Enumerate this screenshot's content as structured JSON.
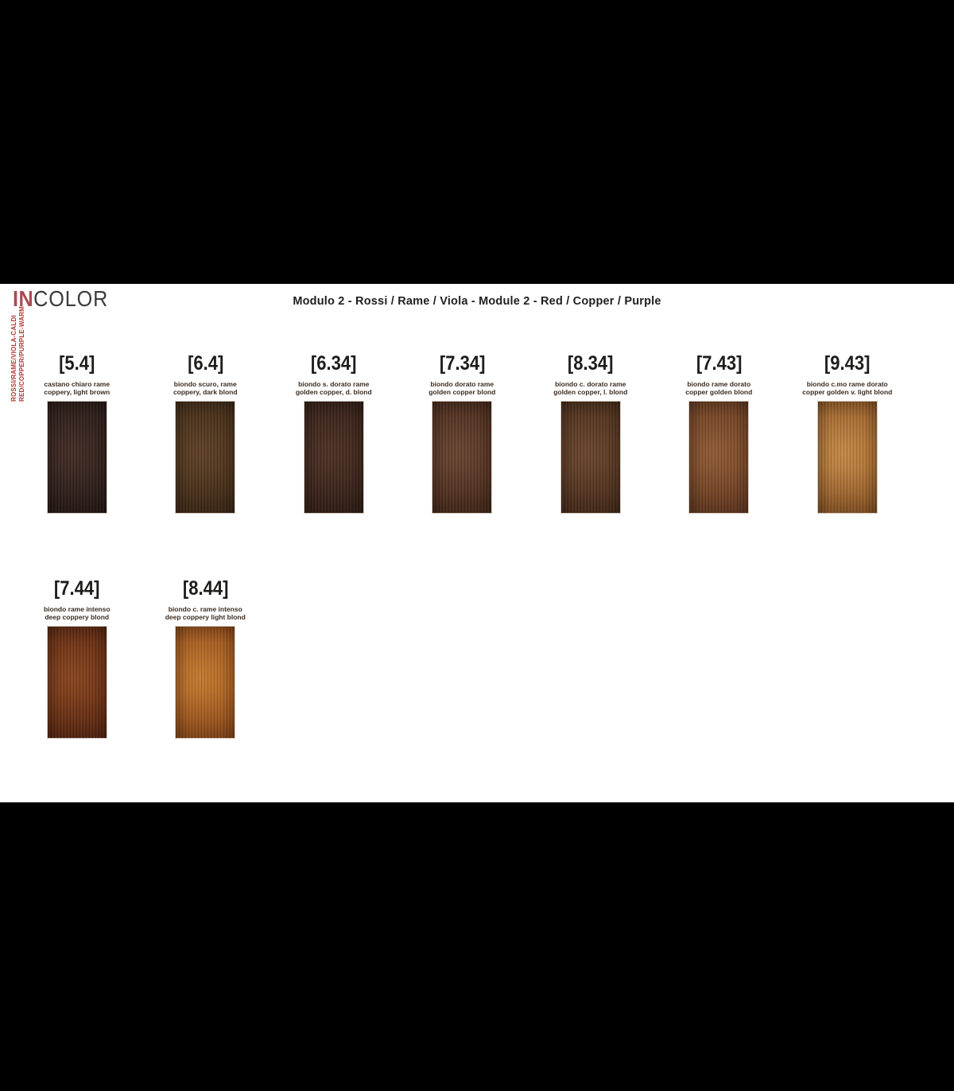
{
  "logo": {
    "prefix": "IN",
    "suffix": "COLOR"
  },
  "title": "Modulo 2 - Rossi / Rame / Viola - Module 2 - Red / Copper / Purple",
  "side_label": {
    "line1": "ROSSI/RAME/VIOLA-CALDI",
    "line2": "RED/COPPER/PURPLE-WARM"
  },
  "colors": {
    "page_bg": "#000000",
    "sheet_bg": "#ffffff",
    "logo_prefix": "#a84c50",
    "logo_suffix": "#3b3b3a",
    "title": "#1f1f1f",
    "side_label": "#b23730",
    "code": "#1d1d1b",
    "desc": "#3b2c20",
    "swatch_border": "#d6cdc4"
  },
  "rows": [
    {
      "items": [
        {
          "code": "[5.4]",
          "name_it": "castano chiaro rame",
          "name_en": "coppery, light brown",
          "base": "#2a1c19",
          "highlight": "#443029"
        },
        {
          "code": "[6.4]",
          "name_it": "biondo scuro, rame",
          "name_en": "coppery, dark blond",
          "base": "#48301a",
          "highlight": "#62452a"
        },
        {
          "code": "[6.34]",
          "name_it": "biondo s. dorato rame",
          "name_en": "golden copper, d. blond",
          "base": "#39231a",
          "highlight": "#50342a"
        },
        {
          "code": "[7.34]",
          "name_it": "biondo dorato rame",
          "name_en": "golden copper blond",
          "base": "#52301f",
          "highlight": "#6e4936"
        },
        {
          "code": "[8.34]",
          "name_it": "biondo c. dorato rame",
          "name_en": "golden copper, l. blond",
          "base": "#54341f",
          "highlight": "#6f4a32"
        },
        {
          "code": "[7.43]",
          "name_it": "biondo rame dorato",
          "name_en": "copper golden blond",
          "base": "#7b4526",
          "highlight": "#96613a"
        },
        {
          "code": "[9.43]",
          "name_it": "biondo c.mo rame dorato",
          "name_en": "copper golden v. light blond",
          "base": "#ad6a2d",
          "highlight": "#cf934e"
        }
      ]
    },
    {
      "items": [
        {
          "code": "[7.44]",
          "name_it": "biondo rame intenso",
          "name_en": "deep coppery blond",
          "base": "#6b2d13",
          "highlight": "#8f4a22"
        },
        {
          "code": "[8.44]",
          "name_it": "biondo c. rame intenso",
          "name_en": "deep coppery light blond",
          "base": "#ad5a1e",
          "highlight": "#d08434"
        }
      ]
    }
  ]
}
